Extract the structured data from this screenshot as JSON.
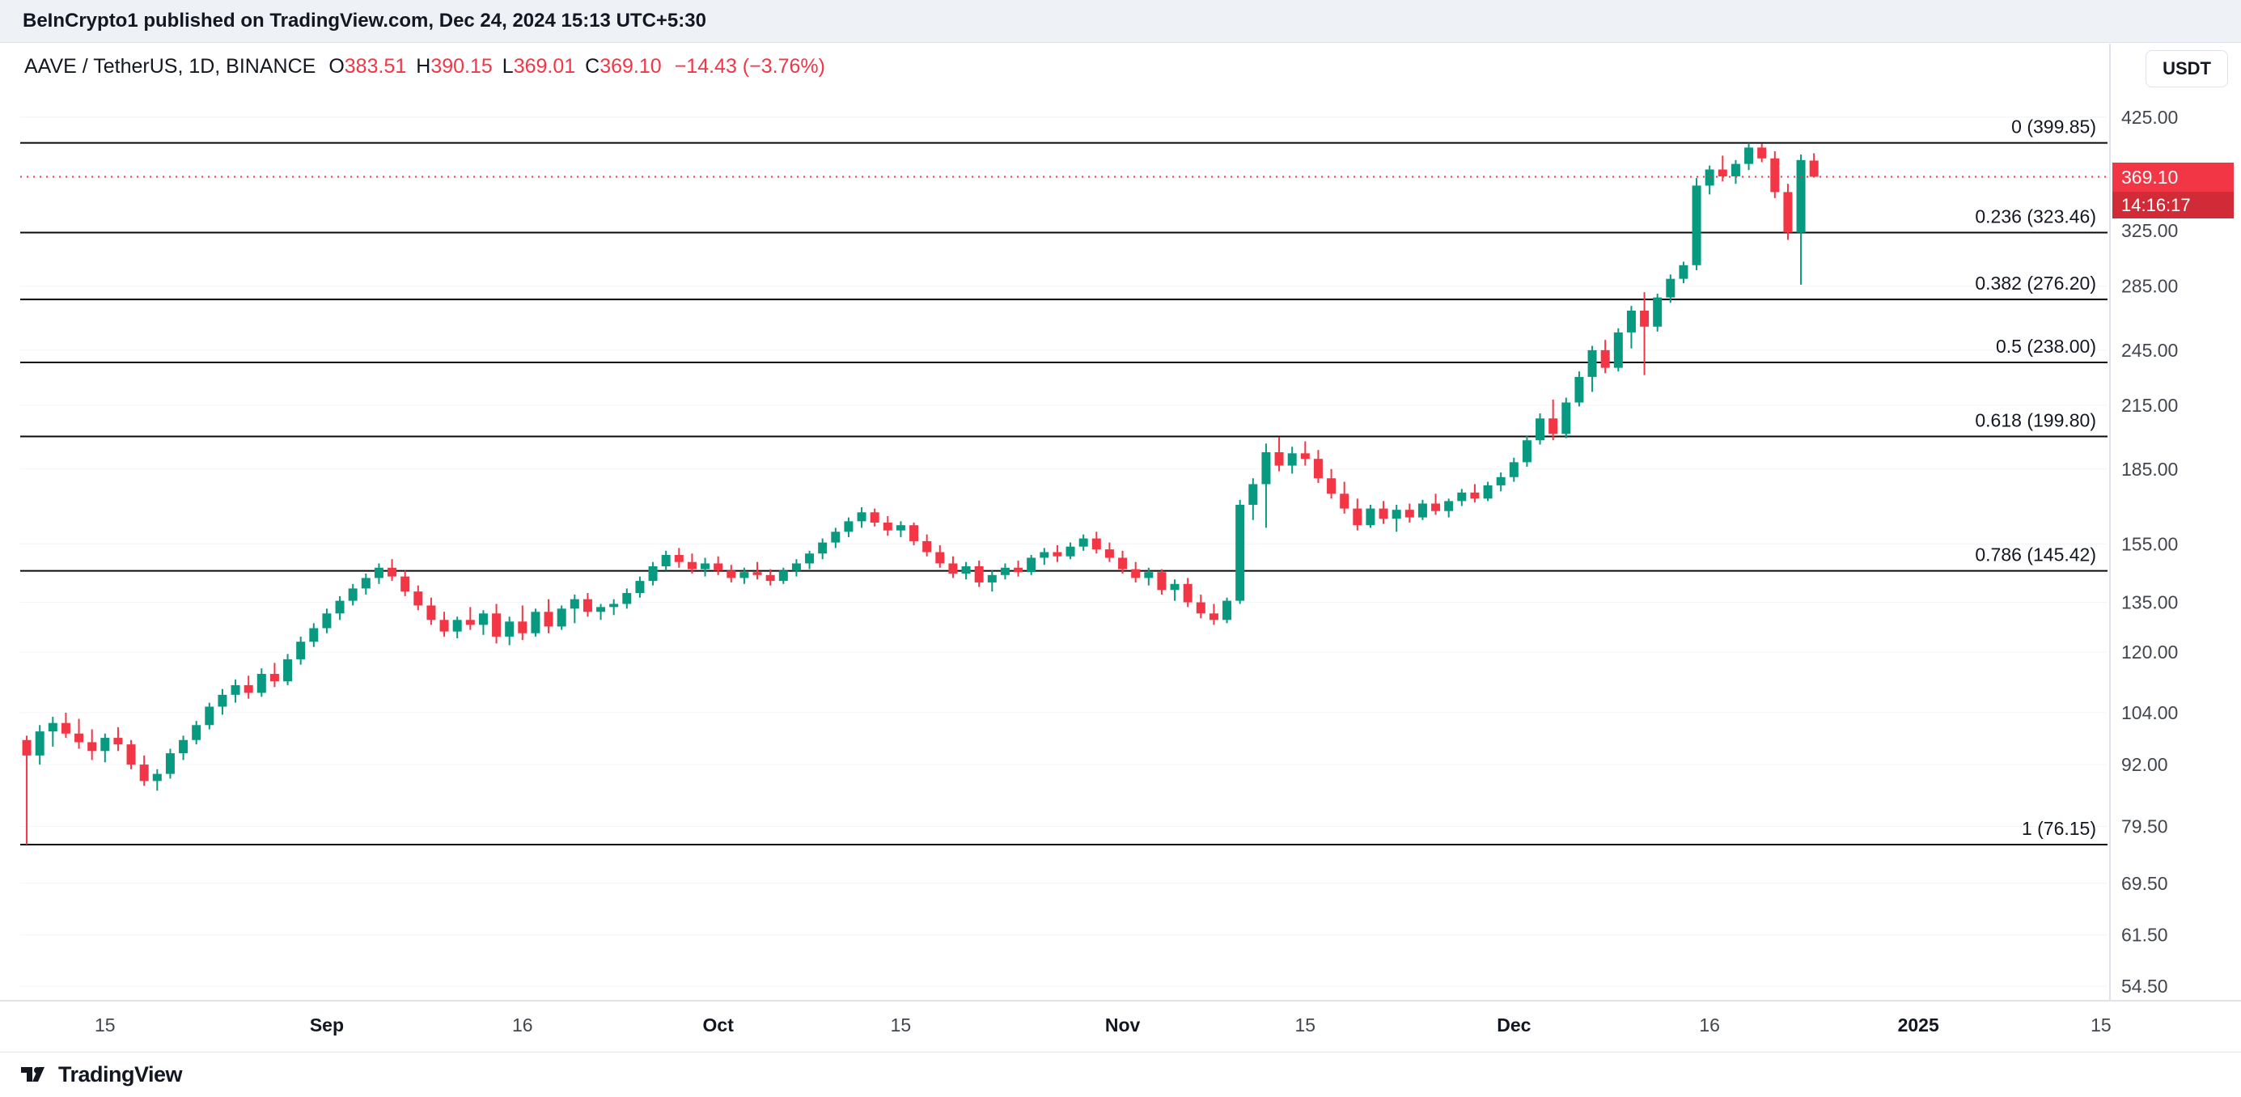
{
  "attribution_bar": {
    "text": "BeInCrypto1 published on TradingView.com, Dec 24, 2024 15:13 UTC+5:30"
  },
  "toolbar": {
    "currency_button": "USDT"
  },
  "legend": {
    "title": "AAVE / TetherUS, 1D, BINANCE",
    "ohlc": [
      {
        "label": "O",
        "value": "383.51"
      },
      {
        "label": "H",
        "value": "390.15"
      },
      {
        "label": "L",
        "value": "369.01"
      },
      {
        "label": "C",
        "value": "369.10"
      }
    ],
    "change": "−14.43 (−3.76%)"
  },
  "price_axis": {
    "last_price_label": "369.10",
    "countdown": "14:16:17"
  },
  "footer": {
    "brand": "TradingView"
  },
  "colors": {
    "up": "#089981",
    "down": "#f23645",
    "fib": "#0a0a0a",
    "axis_text": "#42464e",
    "grid": "#f2f4f7"
  },
  "chart_data": {
    "type": "candlestick",
    "symbol": "AAVE / TetherUS",
    "exchange": "BINANCE",
    "interval": "1D",
    "scale": "log",
    "start_date": "2024-08-09",
    "end_date": "2024-12-24",
    "last_price": 369.1,
    "right_margin_slots": 22,
    "price_ticks": [
      {
        "label": "425.00",
        "value": 425.0
      },
      {
        "label": "325.00",
        "value": 325.0
      },
      {
        "label": "285.00",
        "value": 285.0
      },
      {
        "label": "245.00",
        "value": 245.0
      },
      {
        "label": "215.00",
        "value": 215.0
      },
      {
        "label": "185.00",
        "value": 185.0
      },
      {
        "label": "155.00",
        "value": 155.0
      },
      {
        "label": "135.00",
        "value": 135.0
      },
      {
        "label": "120.00",
        "value": 120.0
      },
      {
        "label": "104.00",
        "value": 104.0
      },
      {
        "label": "92.00",
        "value": 92.0
      },
      {
        "label": "79.50",
        "value": 79.5
      },
      {
        "label": "69.50",
        "value": 69.5
      },
      {
        "label": "61.50",
        "value": 61.5
      },
      {
        "label": "54.50",
        "value": 54.5
      }
    ],
    "fib_retracement": [
      {
        "ratio": "0",
        "price": "399.85",
        "value": 399.85
      },
      {
        "ratio": "0.236",
        "price": "323.46",
        "value": 323.46
      },
      {
        "ratio": "0.382",
        "price": "276.20",
        "value": 276.2
      },
      {
        "ratio": "0.5",
        "price": "238.00",
        "value": 238.0
      },
      {
        "ratio": "0.618",
        "price": "199.80",
        "value": 199.8
      },
      {
        "ratio": "0.786",
        "price": "145.42",
        "value": 145.42
      },
      {
        "ratio": "1",
        "price": "76.15",
        "value": 76.15
      }
    ],
    "time_labels": [
      {
        "text": "15",
        "index": 6,
        "bold": false
      },
      {
        "text": "Sep",
        "index": 23,
        "bold": true
      },
      {
        "text": "16",
        "index": 38,
        "bold": false
      },
      {
        "text": "Oct",
        "index": 53,
        "bold": true
      },
      {
        "text": "15",
        "index": 67,
        "bold": false
      },
      {
        "text": "Nov",
        "index": 84,
        "bold": true
      },
      {
        "text": "15",
        "index": 98,
        "bold": false
      },
      {
        "text": "Dec",
        "index": 114,
        "bold": true
      },
      {
        "text": "16",
        "index": 129,
        "bold": false
      },
      {
        "text": "2025",
        "index": 145,
        "bold": true
      },
      {
        "text": "15",
        "index": 159,
        "bold": false
      }
    ],
    "candles": [
      [
        97.5,
        98.5,
        76.15,
        94
      ],
      [
        94,
        101,
        92,
        99.5
      ],
      [
        99.5,
        103,
        96,
        101.5
      ],
      [
        101.5,
        104,
        98,
        99
      ],
      [
        99,
        102.5,
        95.5,
        97
      ],
      [
        97,
        100,
        93,
        95
      ],
      [
        95,
        99,
        92.5,
        98
      ],
      [
        98,
        100.5,
        95,
        96.5
      ],
      [
        96.5,
        97.5,
        91,
        92
      ],
      [
        92,
        94,
        87.5,
        88.5
      ],
      [
        88.5,
        91,
        86.5,
        90
      ],
      [
        90,
        95.5,
        89,
        94.5
      ],
      [
        94.5,
        98.5,
        93,
        97.5
      ],
      [
        97.5,
        102,
        96.5,
        101
      ],
      [
        101,
        106.5,
        100,
        105.5
      ],
      [
        105.5,
        110,
        103.5,
        108.5
      ],
      [
        108.5,
        112.5,
        106.5,
        111
      ],
      [
        111,
        113.5,
        107.5,
        109
      ],
      [
        109,
        115.5,
        108,
        114
      ],
      [
        114,
        117,
        110.5,
        112
      ],
      [
        112,
        119.5,
        111,
        118
      ],
      [
        118,
        124.5,
        116.5,
        123
      ],
      [
        123,
        128.5,
        121.5,
        127
      ],
      [
        127,
        133,
        125.5,
        131.5
      ],
      [
        131.5,
        137,
        129.5,
        135.5
      ],
      [
        135.5,
        141,
        134,
        139.5
      ],
      [
        139.5,
        144.5,
        137.5,
        143
      ],
      [
        143,
        148,
        141,
        146.5
      ],
      [
        146.5,
        149.5,
        142,
        143.5
      ],
      [
        143.5,
        145.5,
        137,
        138.5
      ],
      [
        138.5,
        140.5,
        132.5,
        134
      ],
      [
        134,
        136.5,
        128,
        129.5
      ],
      [
        129.5,
        132,
        124.5,
        126
      ],
      [
        126,
        130.5,
        124,
        129.5
      ],
      [
        129.5,
        133.5,
        126.5,
        128
      ],
      [
        128,
        132.5,
        125,
        131.5
      ],
      [
        131.5,
        134.5,
        122.5,
        124.5
      ],
      [
        124.5,
        130.5,
        122,
        129
      ],
      [
        129,
        134,
        123.5,
        125.5
      ],
      [
        125.5,
        133,
        124.5,
        132
      ],
      [
        132,
        136,
        125.5,
        127.5
      ],
      [
        127.5,
        134,
        126.5,
        133
      ],
      [
        133,
        137.5,
        128.5,
        136
      ],
      [
        136,
        138,
        130.5,
        132
      ],
      [
        132,
        134.5,
        129.5,
        133.5
      ],
      [
        133.5,
        136,
        131,
        134.5
      ],
      [
        134.5,
        139.5,
        133,
        138
      ],
      [
        138,
        143.5,
        136.5,
        142
      ],
      [
        142,
        148.5,
        140.5,
        147
      ],
      [
        147,
        152.5,
        145.5,
        151
      ],
      [
        151,
        153.5,
        146.5,
        148.5
      ],
      [
        148.5,
        151.5,
        144.5,
        146
      ],
      [
        146,
        150,
        143.5,
        148
      ],
      [
        148,
        150.5,
        144,
        145.5
      ],
      [
        145.5,
        147.5,
        141.5,
        143
      ],
      [
        143,
        146.5,
        141,
        145
      ],
      [
        145,
        148.5,
        142.5,
        144
      ],
      [
        144,
        146,
        140.5,
        142
      ],
      [
        142,
        146.5,
        141,
        145.5
      ],
      [
        145.5,
        149.5,
        143.5,
        148
      ],
      [
        148,
        152.5,
        146,
        151.5
      ],
      [
        151.5,
        157,
        149.5,
        155.5
      ],
      [
        155.5,
        161,
        153.5,
        159.5
      ],
      [
        159.5,
        165,
        157.5,
        163.5
      ],
      [
        163.5,
        169,
        161,
        167
      ],
      [
        167,
        168.5,
        161.5,
        163
      ],
      [
        163,
        165.5,
        158,
        160
      ],
      [
        160,
        163.5,
        157.5,
        162
      ],
      [
        162,
        163,
        154.5,
        156
      ],
      [
        156,
        158.5,
        150.5,
        152
      ],
      [
        152,
        154.5,
        146.5,
        148
      ],
      [
        148,
        150.5,
        143,
        144.5
      ],
      [
        144.5,
        148.5,
        142.5,
        147
      ],
      [
        147,
        149,
        140,
        141.5
      ],
      [
        141.5,
        145.5,
        138.5,
        144
      ],
      [
        144,
        148,
        142.5,
        146.5
      ],
      [
        146.5,
        149,
        143.5,
        145
      ],
      [
        145,
        151,
        144,
        150
      ],
      [
        150,
        153.5,
        147.5,
        152
      ],
      [
        152,
        154.5,
        148.5,
        150.5
      ],
      [
        150.5,
        155.5,
        149.5,
        154
      ],
      [
        154,
        158.5,
        152.5,
        157
      ],
      [
        157,
        159.5,
        151.5,
        153
      ],
      [
        153,
        155.5,
        148.5,
        150
      ],
      [
        150,
        152.5,
        144.5,
        146
      ],
      [
        146,
        148.5,
        141.5,
        143
      ],
      [
        143,
        146.5,
        140.5,
        145
      ],
      [
        145,
        146,
        137.5,
        139
      ],
      [
        139,
        142.5,
        135.5,
        141
      ],
      [
        141,
        143,
        133.5,
        135
      ],
      [
        135,
        137.5,
        130,
        131.5
      ],
      [
        131.5,
        134.5,
        128,
        129.5
      ],
      [
        129.5,
        136.5,
        128.5,
        135.5
      ],
      [
        135.5,
        172,
        134.5,
        170
      ],
      [
        170,
        181,
        164,
        178.5
      ],
      [
        178.5,
        196.5,
        161,
        192.5
      ],
      [
        192.5,
        199.5,
        184,
        186.5
      ],
      [
        186.5,
        195,
        183,
        192
      ],
      [
        192,
        197.5,
        186.5,
        189.5
      ],
      [
        189.5,
        193.5,
        179,
        181
      ],
      [
        181,
        185,
        172.5,
        174.5
      ],
      [
        174.5,
        179.5,
        166.5,
        168.5
      ],
      [
        168.5,
        172.5,
        160,
        162
      ],
      [
        162,
        170,
        161,
        168.5
      ],
      [
        168.5,
        171.5,
        162.5,
        164.5
      ],
      [
        164.5,
        170,
        159.5,
        168
      ],
      [
        168,
        170.5,
        163,
        165
      ],
      [
        165,
        172,
        164,
        170.5
      ],
      [
        170.5,
        174.5,
        166,
        167.5
      ],
      [
        167.5,
        172.5,
        165,
        171.5
      ],
      [
        171.5,
        176.5,
        169.5,
        175
      ],
      [
        175,
        178.5,
        171,
        172.5
      ],
      [
        172.5,
        179.5,
        171.5,
        178
      ],
      [
        178,
        183.5,
        175.5,
        181.5
      ],
      [
        181.5,
        190,
        179.5,
        188
      ],
      [
        188,
        200,
        186,
        198
      ],
      [
        198,
        211,
        196,
        208.5
      ],
      [
        208.5,
        218,
        198,
        201
      ],
      [
        201,
        219,
        199,
        216.5
      ],
      [
        216.5,
        233,
        214.5,
        230
      ],
      [
        230,
        247.5,
        222,
        245
      ],
      [
        245,
        251,
        232,
        235
      ],
      [
        235,
        258,
        233,
        255.5
      ],
      [
        255.5,
        272,
        246,
        269
      ],
      [
        269,
        281,
        231,
        259
      ],
      [
        259,
        280,
        256,
        277.5
      ],
      [
        277.5,
        293,
        274,
        290
      ],
      [
        290,
        302,
        287,
        299.5
      ],
      [
        299.5,
        368,
        296,
        361.5
      ],
      [
        361.5,
        379,
        354,
        375.5
      ],
      [
        375.5,
        388,
        365,
        369.5
      ],
      [
        369.5,
        384,
        363,
        380.5
      ],
      [
        380.5,
        399.85,
        375,
        395.5
      ],
      [
        395.5,
        399,
        382,
        385.5
      ],
      [
        385.5,
        392,
        351,
        356
      ],
      [
        356,
        363,
        318,
        323.5
      ],
      [
        323.5,
        389,
        286,
        384
      ],
      [
        383.51,
        390.15,
        369.01,
        369.1
      ]
    ]
  }
}
